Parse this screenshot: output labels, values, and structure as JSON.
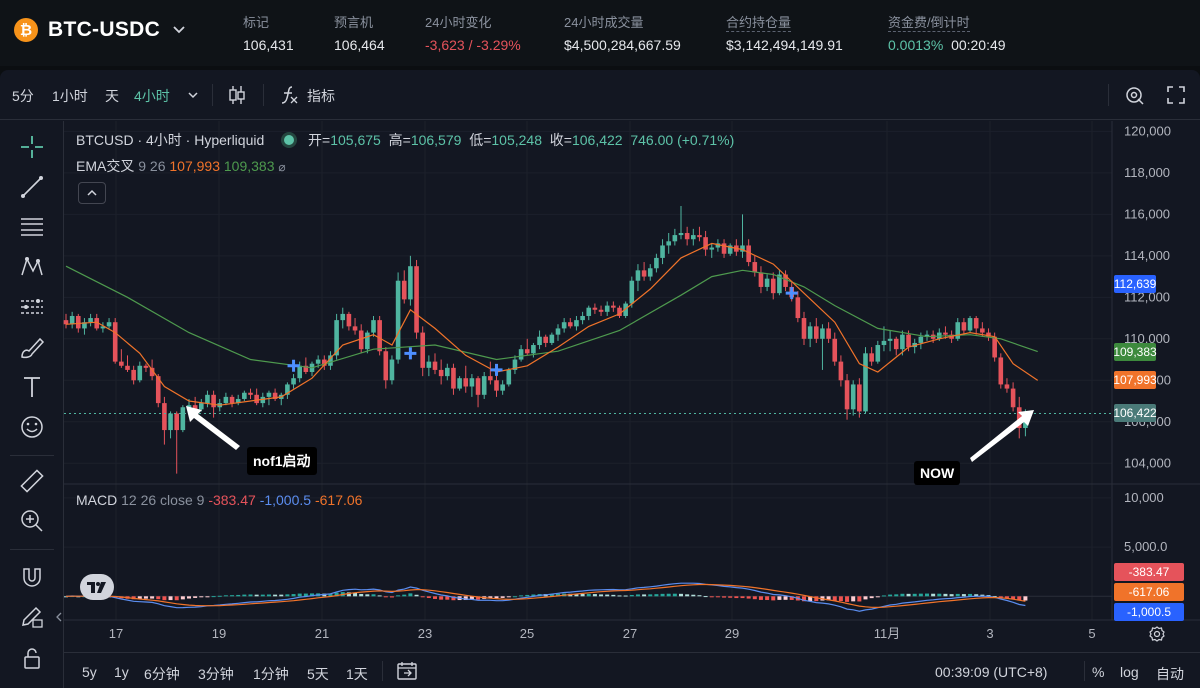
{
  "header": {
    "pair": "BTC-USDC",
    "logo_glyph": "₿",
    "stats": [
      {
        "label": "标记",
        "value": "106,431"
      },
      {
        "label": "预言机",
        "value": "106,464"
      },
      {
        "label": "24小时变化",
        "value": "-3,623 / -3.29%"
      },
      {
        "label": "24小时成交量",
        "value": "$4,500,284,667.59"
      },
      {
        "label": "合约持仓量",
        "value": "$3,142,494,149.91"
      },
      {
        "label": "资金费/倒计时",
        "value": "0.0013%",
        "value2": "00:20:49"
      }
    ]
  },
  "toolbar": {
    "intervals": [
      "5分",
      "1小时",
      "天",
      "4小时"
    ],
    "active_interval": "4小时",
    "indicators_label": "指标"
  },
  "legend": {
    "symbol": "BTCUSD · 4小时 · Hyperliquid",
    "open_label": "开=",
    "open": "105,675",
    "high_label": "高=",
    "high": "106,579",
    "low_label": "低=",
    "low": "105,248",
    "close_label": "收=",
    "close": "106,422",
    "change": "746.00 (+0.71%)",
    "ema_label": "EMA交叉",
    "ema_params": "9 26",
    "ema_fast": "107,993",
    "ema_slow": "109,383",
    "macd_label": "MACD",
    "macd_params": "12 26 close 9",
    "macd_hist": "-383.47",
    "macd_line": "-1,000.5",
    "macd_signal": "-617.06"
  },
  "annotations": {
    "left": "nof1启动",
    "right": "NOW"
  },
  "price_axis": {
    "ticks": [
      "120,000",
      "118,000",
      "116,000",
      "114,000",
      "112,000",
      "110,000",
      "108,000",
      "106,000",
      "104,000"
    ],
    "tags": [
      {
        "value": "112,639",
        "color": "#2962ff"
      },
      {
        "value": "109,383",
        "color": "#3d8a3d"
      },
      {
        "value": "107,993",
        "color": "#f0732a"
      },
      {
        "value": "106,422",
        "color": "#4a7a78"
      }
    ]
  },
  "macd_axis": {
    "ticks": [
      "10,000",
      "5,000.0"
    ],
    "tags": [
      {
        "value": "-383.47",
        "color": "#e5535b"
      },
      {
        "value": "-617.06",
        "color": "#f0732a"
      },
      {
        "value": "-1,000.5",
        "color": "#2962ff"
      }
    ]
  },
  "time_axis": [
    "17",
    "19",
    "21",
    "23",
    "25",
    "27",
    "29",
    "11月",
    "3",
    "5"
  ],
  "bottom": {
    "ranges": [
      "5y",
      "1y",
      "6分钟",
      "3分钟",
      "1分钟",
      "5天",
      "1天"
    ],
    "clock": "00:39:09 (UTC+8)",
    "pct": "%",
    "log": "log",
    "auto": "自动"
  },
  "chart_data": {
    "type": "candlestick",
    "y_range": [
      103000,
      120500
    ],
    "colors": {
      "up": "#4fb5a0",
      "down": "#e5535b",
      "ema_fast": "#f0732a",
      "ema_slow": "#4e9a4e"
    },
    "ohlc": [
      [
        110900,
        111200,
        110500,
        110700
      ],
      [
        110700,
        111300,
        110500,
        111100
      ],
      [
        111100,
        111200,
        110300,
        110500
      ],
      [
        110500,
        111000,
        110200,
        110800
      ],
      [
        110800,
        111200,
        110600,
        111000
      ],
      [
        111000,
        111200,
        110400,
        110500
      ],
      [
        110500,
        110800,
        110300,
        110600
      ],
      [
        110600,
        111000,
        110500,
        110800
      ],
      [
        110800,
        111000,
        108800,
        108900
      ],
      [
        108900,
        109500,
        108600,
        108700
      ],
      [
        108700,
        109200,
        108400,
        108500
      ],
      [
        108500,
        108700,
        107800,
        108000
      ],
      [
        108000,
        108900,
        107900,
        108700
      ],
      [
        108700,
        108800,
        108400,
        108600
      ],
      [
        108600,
        109000,
        108000,
        108200
      ],
      [
        108200,
        108300,
        106700,
        106900
      ],
      [
        106900,
        107200,
        104900,
        105600
      ],
      [
        105600,
        106500,
        105200,
        106400
      ],
      [
        106400,
        106500,
        103500,
        105600
      ],
      [
        105600,
        106800,
        105500,
        106700
      ],
      [
        106700,
        107100,
        106500,
        106800
      ],
      [
        106800,
        107200,
        106300,
        106600
      ],
      [
        106600,
        107100,
        106500,
        106900
      ],
      [
        106900,
        107500,
        106700,
        107300
      ],
      [
        107300,
        107500,
        106200,
        106700
      ],
      [
        106700,
        107100,
        106500,
        106900
      ],
      [
        106900,
        107400,
        106800,
        107200
      ],
      [
        107200,
        107300,
        106700,
        106900
      ],
      [
        106900,
        107300,
        106800,
        107100
      ],
      [
        107100,
        107500,
        107000,
        107400
      ],
      [
        107400,
        107600,
        107100,
        107300
      ],
      [
        107300,
        107600,
        106800,
        106900
      ],
      [
        106900,
        107400,
        106700,
        107200
      ],
      [
        107200,
        107500,
        106800,
        107400
      ],
      [
        107400,
        107600,
        107000,
        107100
      ],
      [
        107100,
        107400,
        106800,
        107300
      ],
      [
        107300,
        107900,
        107100,
        107800
      ],
      [
        107800,
        108300,
        107600,
        108100
      ],
      [
        108100,
        108900,
        107900,
        108700
      ],
      [
        108700,
        109100,
        108300,
        108400
      ],
      [
        108400,
        108900,
        108200,
        108800
      ],
      [
        108800,
        109200,
        108600,
        109000
      ],
      [
        109000,
        109200,
        108500,
        108700
      ],
      [
        108700,
        109400,
        108500,
        109200
      ],
      [
        109200,
        111200,
        109000,
        110900
      ],
      [
        110900,
        111500,
        110500,
        111200
      ],
      [
        111200,
        111300,
        110400,
        110600
      ],
      [
        110600,
        111000,
        110200,
        110400
      ],
      [
        110400,
        110700,
        109300,
        109500
      ],
      [
        109500,
        110400,
        109300,
        110300
      ],
      [
        110300,
        111100,
        110100,
        110900
      ],
      [
        110900,
        111100,
        109200,
        109400
      ],
      [
        109400,
        109600,
        107600,
        108000
      ],
      [
        108000,
        109200,
        107800,
        109000
      ],
      [
        109000,
        113200,
        108800,
        112800
      ],
      [
        112800,
        113300,
        111700,
        111900
      ],
      [
        111900,
        114000,
        111600,
        113500
      ],
      [
        113500,
        113800,
        110000,
        110300
      ],
      [
        110300,
        110600,
        108200,
        108600
      ],
      [
        108600,
        109200,
        108200,
        108900
      ],
      [
        108900,
        109300,
        108300,
        108500
      ],
      [
        108500,
        109000,
        107800,
        108200
      ],
      [
        108200,
        108800,
        108000,
        108600
      ],
      [
        108600,
        108800,
        107300,
        107600
      ],
      [
        107600,
        108200,
        107500,
        108100
      ],
      [
        108100,
        108700,
        107400,
        107700
      ],
      [
        107700,
        108300,
        107200,
        108100
      ],
      [
        108100,
        108200,
        106700,
        107300
      ],
      [
        107300,
        108400,
        107100,
        108200
      ],
      [
        108200,
        108900,
        107800,
        108000
      ],
      [
        108000,
        108400,
        107200,
        107500
      ],
      [
        107500,
        108000,
        107300,
        107800
      ],
      [
        107800,
        108600,
        107700,
        108500
      ],
      [
        108500,
        109200,
        108300,
        109000
      ],
      [
        109000,
        109700,
        108900,
        109500
      ],
      [
        109500,
        110000,
        109200,
        109300
      ],
      [
        109300,
        109800,
        109100,
        109700
      ],
      [
        109700,
        110400,
        109500,
        110100
      ],
      [
        110100,
        110200,
        109600,
        109800
      ],
      [
        109800,
        110300,
        109700,
        110200
      ],
      [
        110200,
        110700,
        109900,
        110500
      ],
      [
        110500,
        111000,
        110300,
        110800
      ],
      [
        110800,
        111000,
        110500,
        110600
      ],
      [
        110600,
        111100,
        110400,
        110900
      ],
      [
        110900,
        111300,
        110700,
        111100
      ],
      [
        111100,
        111600,
        110900,
        111500
      ],
      [
        111500,
        111700,
        111200,
        111400
      ],
      [
        111400,
        111600,
        111100,
        111300
      ],
      [
        111300,
        111800,
        111100,
        111600
      ],
      [
        111600,
        111800,
        111300,
        111500
      ],
      [
        111500,
        111600,
        111000,
        111100
      ],
      [
        111100,
        111800,
        111000,
        111700
      ],
      [
        111700,
        113000,
        111500,
        112800
      ],
      [
        112800,
        113600,
        112300,
        113300
      ],
      [
        113300,
        113700,
        112800,
        113000
      ],
      [
        113000,
        113600,
        112800,
        113400
      ],
      [
        113400,
        114100,
        113200,
        113900
      ],
      [
        113900,
        114800,
        113600,
        114500
      ],
      [
        114500,
        115100,
        114100,
        114700
      ],
      [
        114700,
        115300,
        114500,
        115000
      ],
      [
        115000,
        116400,
        114800,
        115100
      ],
      [
        115100,
        115400,
        114500,
        114800
      ],
      [
        114800,
        115300,
        114500,
        115000
      ],
      [
        115000,
        115400,
        114700,
        114900
      ],
      [
        114900,
        115200,
        114000,
        114300
      ],
      [
        114300,
        114600,
        113900,
        114400
      ],
      [
        114400,
        114800,
        114200,
        114600
      ],
      [
        114600,
        114800,
        113900,
        114100
      ],
      [
        114100,
        114600,
        114000,
        114500
      ],
      [
        114500,
        114800,
        114000,
        114200
      ],
      [
        114200,
        116000,
        113900,
        114500
      ],
      [
        114500,
        114800,
        113500,
        113700
      ],
      [
        113700,
        114000,
        113000,
        113200
      ],
      [
        113200,
        113500,
        112200,
        112500
      ],
      [
        112500,
        113100,
        112300,
        112900
      ],
      [
        112900,
        113200,
        111900,
        112200
      ],
      [
        112200,
        113300,
        112100,
        113100
      ],
      [
        113100,
        113300,
        112300,
        112500
      ],
      [
        112500,
        112800,
        111800,
        112000
      ],
      [
        112000,
        112300,
        110800,
        111000
      ],
      [
        111000,
        111300,
        109700,
        110000
      ],
      [
        110000,
        110800,
        109600,
        110600
      ],
      [
        110600,
        111000,
        109800,
        110000
      ],
      [
        110000,
        110700,
        108500,
        110500
      ],
      [
        110500,
        110800,
        109800,
        110000
      ],
      [
        110000,
        110300,
        108700,
        108900
      ],
      [
        108900,
        109200,
        107700,
        108000
      ],
      [
        108000,
        108300,
        106100,
        106600
      ],
      [
        106600,
        108000,
        106300,
        107800
      ],
      [
        107800,
        108100,
        106200,
        106500
      ],
      [
        106500,
        109600,
        106400,
        109300
      ],
      [
        109300,
        109600,
        108700,
        108900
      ],
      [
        108900,
        109900,
        108800,
        109700
      ],
      [
        109700,
        110600,
        109400,
        109900
      ],
      [
        109900,
        110400,
        109400,
        110000
      ],
      [
        110000,
        110100,
        109200,
        109500
      ],
      [
        109500,
        110400,
        109200,
        110200
      ],
      [
        110200,
        110400,
        109400,
        109600
      ],
      [
        109600,
        110000,
        109300,
        109800
      ],
      [
        109800,
        110300,
        109500,
        110100
      ],
      [
        110100,
        110400,
        109900,
        110200
      ],
      [
        110200,
        110400,
        109800,
        110000
      ],
      [
        110000,
        110500,
        109900,
        110300
      ],
      [
        110300,
        110600,
        110000,
        110200
      ],
      [
        110200,
        110400,
        109800,
        110000
      ],
      [
        110000,
        111000,
        109900,
        110800
      ],
      [
        110800,
        111000,
        110200,
        110400
      ],
      [
        110400,
        111100,
        110300,
        111000
      ],
      [
        111000,
        111100,
        110200,
        110500
      ],
      [
        110500,
        110800,
        110100,
        110300
      ],
      [
        110300,
        110500,
        109900,
        110100
      ],
      [
        110100,
        110300,
        108900,
        109100
      ],
      [
        109100,
        109300,
        107600,
        107800
      ],
      [
        107800,
        108100,
        107400,
        107600
      ],
      [
        107600,
        107900,
        106500,
        106700
      ],
      [
        106700,
        107200,
        105200,
        105700
      ],
      [
        105700,
        106600,
        105300,
        106400
      ]
    ],
    "ema_fast": [
      [
        0,
        110700
      ],
      [
        5,
        110800
      ],
      [
        8,
        110300
      ],
      [
        12,
        109300
      ],
      [
        16,
        107700
      ],
      [
        20,
        107000
      ],
      [
        25,
        106800
      ],
      [
        30,
        107000
      ],
      [
        35,
        107200
      ],
      [
        40,
        108100
      ],
      [
        45,
        109700
      ],
      [
        50,
        110200
      ],
      [
        53,
        109700
      ],
      [
        56,
        111400
      ],
      [
        60,
        110500
      ],
      [
        65,
        109200
      ],
      [
        70,
        108400
      ],
      [
        75,
        108700
      ],
      [
        80,
        109600
      ],
      [
        85,
        110600
      ],
      [
        90,
        111200
      ],
      [
        95,
        112400
      ],
      [
        100,
        113900
      ],
      [
        105,
        114600
      ],
      [
        110,
        114300
      ],
      [
        115,
        113600
      ],
      [
        120,
        112200
      ],
      [
        125,
        110800
      ],
      [
        129,
        108800
      ],
      [
        132,
        108400
      ],
      [
        137,
        109600
      ],
      [
        142,
        110000
      ],
      [
        147,
        110300
      ],
      [
        151,
        110100
      ],
      [
        154,
        108800
      ],
      [
        158,
        107993
      ]
    ],
    "ema_slow": [
      [
        0,
        113500
      ],
      [
        10,
        112000
      ],
      [
        20,
        110300
      ],
      [
        30,
        109000
      ],
      [
        40,
        108600
      ],
      [
        50,
        109500
      ],
      [
        60,
        109700
      ],
      [
        70,
        109000
      ],
      [
        80,
        109400
      ],
      [
        90,
        110400
      ],
      [
        100,
        112100
      ],
      [
        105,
        113000
      ],
      [
        110,
        113300
      ],
      [
        115,
        113100
      ],
      [
        120,
        112500
      ],
      [
        125,
        111600
      ],
      [
        132,
        110500
      ],
      [
        140,
        110100
      ],
      [
        147,
        110200
      ],
      [
        152,
        110000
      ],
      [
        158,
        109383
      ]
    ],
    "crosses": [
      [
        37,
        108700
      ],
      [
        56,
        109300
      ],
      [
        70,
        108500
      ],
      [
        118,
        112200
      ]
    ],
    "macd": {
      "range": [
        -2000,
        11000
      ]
    }
  }
}
